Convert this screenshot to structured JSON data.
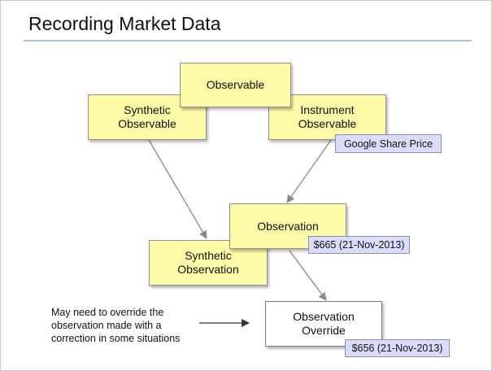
{
  "title": "Recording Market Data",
  "colors": {
    "box_fill": "#fdfaa8",
    "tag_fill": "#d9ddfb",
    "title_rule": "#a8c3dc",
    "connector": "#8a8a8a"
  },
  "nodes": {
    "observable": "Observable",
    "synthetic_observable": "Synthetic\nObservable",
    "instrument_observable": "Instrument\nObservable",
    "observation": "Observation",
    "synthetic_observation": "Synthetic\nObservation",
    "observation_override": "Observation\nOverride"
  },
  "tags": {
    "google_share_price": "Google Share Price",
    "observation_value": "$665 (21-Nov-2013)",
    "override_value": "$656 (21-Nov-2013)"
  },
  "note": "May need to override the\nobservation made with a\ncorrection in some situations"
}
